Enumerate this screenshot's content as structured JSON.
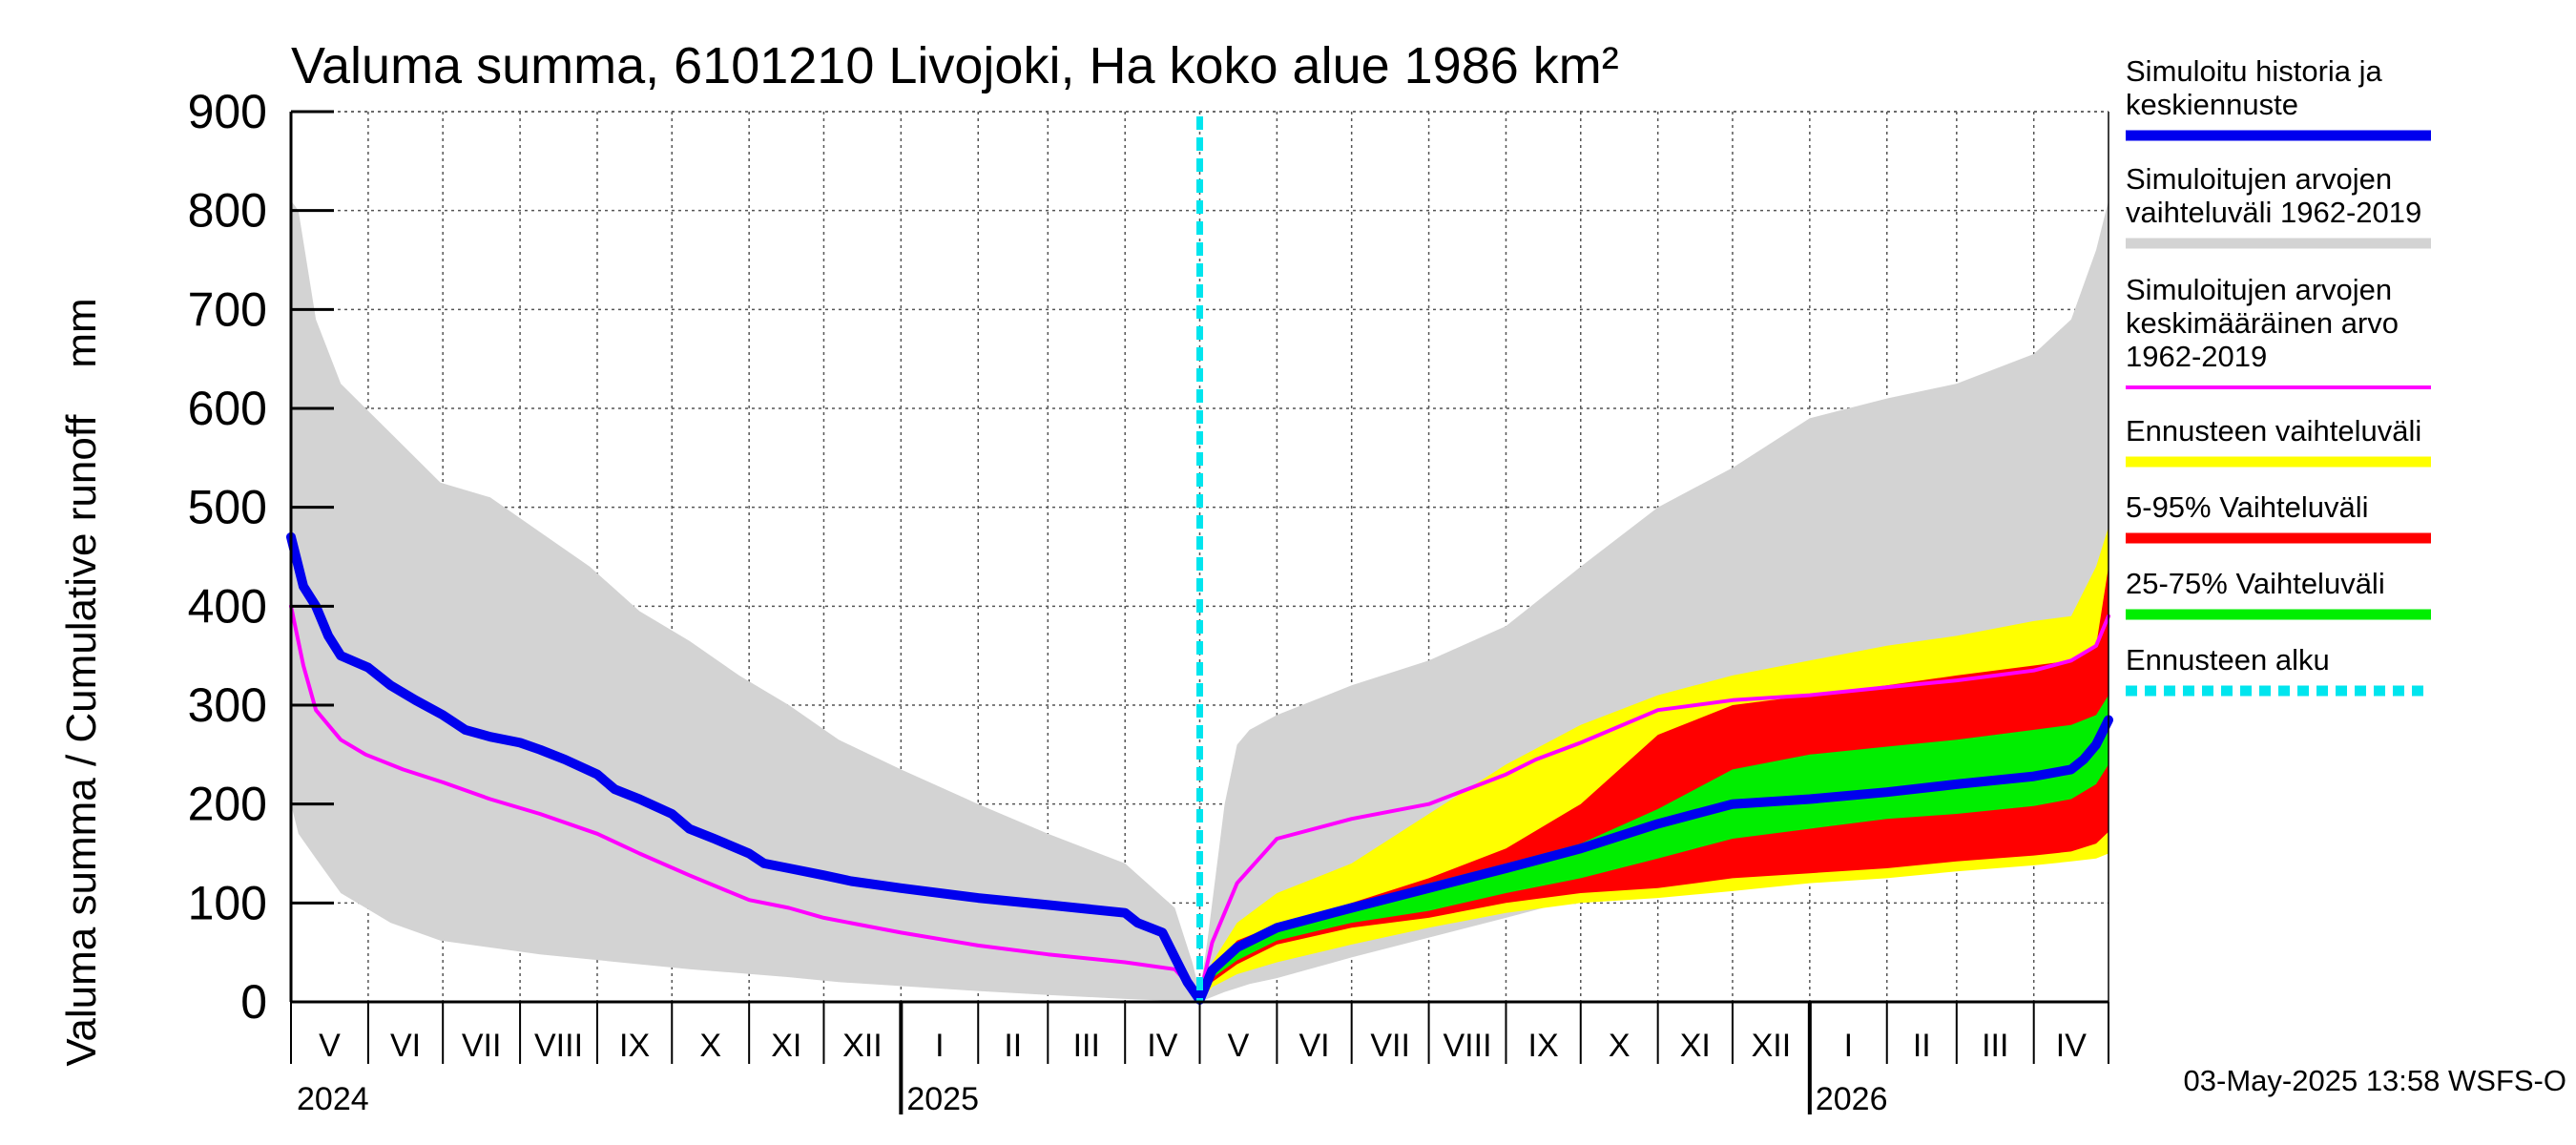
{
  "chart_data": {
    "type": "area",
    "title": "Valuma summa, 6101210 Livojoki, Ha koko alue 1986 km²",
    "ylabel": "Valuma summa / Cumulative runoff    mm",
    "ylim": [
      0,
      900
    ],
    "yticks": [
      "0",
      "100",
      "200",
      "300",
      "400",
      "500",
      "600",
      "700",
      "800",
      "900"
    ],
    "x_range_days": [
      0,
      730
    ],
    "forecast_start_day": 365,
    "months": [
      {
        "label": "V",
        "start": 0,
        "end": 31
      },
      {
        "label": "VI",
        "start": 31,
        "end": 61
      },
      {
        "label": "VII",
        "start": 61,
        "end": 92
      },
      {
        "label": "VIII",
        "start": 92,
        "end": 123
      },
      {
        "label": "IX",
        "start": 123,
        "end": 153
      },
      {
        "label": "X",
        "start": 153,
        "end": 184
      },
      {
        "label": "XI",
        "start": 184,
        "end": 214
      },
      {
        "label": "XII",
        "start": 214,
        "end": 245
      },
      {
        "label": "I",
        "start": 245,
        "end": 276
      },
      {
        "label": "II",
        "start": 276,
        "end": 304
      },
      {
        "label": "III",
        "start": 304,
        "end": 335
      },
      {
        "label": "IV",
        "start": 335,
        "end": 365
      },
      {
        "label": "V",
        "start": 365,
        "end": 396
      },
      {
        "label": "VI",
        "start": 396,
        "end": 426
      },
      {
        "label": "VII",
        "start": 426,
        "end": 457
      },
      {
        "label": "VIII",
        "start": 457,
        "end": 488
      },
      {
        "label": "IX",
        "start": 488,
        "end": 518
      },
      {
        "label": "X",
        "start": 518,
        "end": 549
      },
      {
        "label": "XI",
        "start": 549,
        "end": 579
      },
      {
        "label": "XII",
        "start": 579,
        "end": 610
      },
      {
        "label": "I",
        "start": 610,
        "end": 641
      },
      {
        "label": "II",
        "start": 641,
        "end": 669
      },
      {
        "label": "III",
        "start": 669,
        "end": 700
      },
      {
        "label": "IV",
        "start": 700,
        "end": 730
      }
    ],
    "years": [
      {
        "label": "2024",
        "day": 0
      },
      {
        "label": "2025",
        "day": 245
      },
      {
        "label": "2026",
        "day": 610
      }
    ],
    "series": [
      {
        "name": "Simuloitujen arvojen vaihteluväli 1962-2019",
        "kind": "band",
        "color": "#d3d3d3",
        "x": [
          0,
          3,
          10,
          20,
          40,
          60,
          80,
          100,
          120,
          140,
          160,
          180,
          200,
          220,
          245,
          276,
          304,
          335,
          355,
          362,
          365,
          368,
          375,
          380,
          385,
          396,
          426,
          457,
          488,
          518,
          549,
          579,
          610,
          641,
          669,
          700,
          715,
          725,
          730
        ],
        "upper": [
          810,
          800,
          690,
          625,
          575,
          525,
          510,
          475,
          440,
          395,
          365,
          330,
          300,
          265,
          235,
          200,
          170,
          140,
          95,
          40,
          10,
          60,
          200,
          260,
          275,
          290,
          320,
          345,
          380,
          440,
          500,
          540,
          590,
          610,
          625,
          655,
          690,
          760,
          810
        ],
        "lower": [
          200,
          170,
          145,
          110,
          80,
          62,
          55,
          48,
          43,
          38,
          33,
          29,
          25,
          20,
          16,
          11,
          7,
          3,
          1,
          0,
          0,
          3,
          10,
          14,
          18,
          24,
          45,
          65,
          85,
          105,
          115,
          120,
          125,
          130,
          135,
          140,
          145,
          150,
          155
        ]
      },
      {
        "name": "Ennusteen vaihteluväli",
        "kind": "band",
        "color": "#ffff00",
        "x": [
          365,
          370,
          380,
          396,
          426,
          457,
          488,
          518,
          549,
          579,
          610,
          641,
          669,
          700,
          715,
          725,
          730
        ],
        "upper": [
          5,
          40,
          80,
          110,
          140,
          190,
          240,
          280,
          310,
          330,
          345,
          360,
          370,
          385,
          390,
          440,
          480
        ],
        "lower": [
          0,
          15,
          28,
          40,
          58,
          75,
          90,
          100,
          105,
          112,
          120,
          125,
          132,
          138,
          142,
          145,
          150
        ]
      },
      {
        "name": "5-95% Vaihteluväli",
        "kind": "band",
        "color": "#ff0000",
        "x": [
          365,
          370,
          380,
          396,
          426,
          457,
          488,
          518,
          549,
          579,
          610,
          641,
          669,
          700,
          715,
          725,
          730
        ],
        "upper": [
          5,
          35,
          62,
          78,
          100,
          125,
          155,
          200,
          270,
          300,
          310,
          320,
          330,
          340,
          345,
          360,
          440
        ],
        "lower": [
          0,
          20,
          38,
          58,
          75,
          85,
          100,
          110,
          115,
          125,
          130,
          135,
          142,
          148,
          152,
          160,
          172
        ]
      },
      {
        "name": "25-75% Vaihteluväli",
        "kind": "band",
        "color": "#00ee00",
        "x": [
          365,
          370,
          380,
          396,
          426,
          457,
          488,
          518,
          549,
          579,
          610,
          641,
          669,
          700,
          715,
          725,
          730
        ],
        "upper": [
          4,
          32,
          55,
          72,
          95,
          120,
          140,
          160,
          195,
          235,
          250,
          258,
          265,
          275,
          280,
          290,
          310
        ],
        "lower": [
          0,
          24,
          42,
          62,
          80,
          92,
          110,
          125,
          145,
          165,
          175,
          185,
          190,
          198,
          205,
          220,
          240
        ]
      },
      {
        "name": "Simuloitujen arvojen keskimääräinen arvo 1962-2019",
        "kind": "line",
        "color": "#ff00ff",
        "width": 4,
        "x": [
          0,
          5,
          10,
          20,
          30,
          45,
          61,
          80,
          100,
          123,
          140,
          160,
          184,
          200,
          214,
          245,
          276,
          304,
          335,
          355,
          365,
          370,
          380,
          396,
          426,
          457,
          488,
          500,
          518,
          549,
          579,
          610,
          641,
          669,
          700,
          715,
          725,
          730
        ],
        "y": [
          400,
          340,
          295,
          265,
          250,
          235,
          222,
          205,
          190,
          170,
          150,
          128,
          103,
          95,
          85,
          70,
          57,
          48,
          40,
          33,
          5,
          60,
          120,
          165,
          185,
          200,
          230,
          245,
          262,
          295,
          305,
          310,
          318,
          325,
          335,
          345,
          360,
          390
        ]
      },
      {
        "name": "Simuloitu historia ja keskiennuste",
        "kind": "line",
        "color": "#0000ee",
        "width": 10,
        "x": [
          0,
          2,
          5,
          10,
          15,
          20,
          31,
          40,
          50,
          61,
          70,
          80,
          92,
          100,
          110,
          123,
          130,
          140,
          153,
          160,
          170,
          184,
          190,
          200,
          214,
          225,
          245,
          276,
          304,
          335,
          340,
          350,
          355,
          360,
          365,
          370,
          380,
          396,
          426,
          457,
          488,
          518,
          549,
          579,
          610,
          641,
          669,
          700,
          715,
          720,
          725,
          730
        ],
        "y": [
          470,
          450,
          420,
          400,
          370,
          350,
          338,
          320,
          305,
          290,
          275,
          268,
          262,
          255,
          245,
          230,
          215,
          205,
          190,
          175,
          165,
          150,
          140,
          135,
          128,
          122,
          115,
          105,
          98,
          90,
          80,
          70,
          45,
          20,
          2,
          32,
          55,
          75,
          95,
          115,
          135,
          155,
          180,
          200,
          205,
          212,
          220,
          228,
          235,
          245,
          260,
          285
        ]
      }
    ],
    "forecast_line": {
      "name": "Ennusteen alku",
      "color": "#00e5ee"
    },
    "legend": {
      "placement": "right",
      "items": [
        {
          "label_lines": [
            "Simuloitu historia ja",
            "keskiennuste"
          ],
          "color": "#0000ee"
        },
        {
          "label_lines": [
            "Simuloitujen arvojen",
            "vaihteluväli 1962-2019"
          ],
          "color": "#d3d3d3"
        },
        {
          "label_lines": [
            "Simuloitujen arvojen",
            "keskimääräinen arvo",
            "   1962-2019"
          ],
          "color": "#ff00ff"
        },
        {
          "label_lines": [
            "Ennusteen vaihteluväli"
          ],
          "color": "#ffff00"
        },
        {
          "label_lines": [
            "5-95% Vaihteluväli"
          ],
          "color": "#ff0000"
        },
        {
          "label_lines": [
            "25-75% Vaihteluväli"
          ],
          "color": "#00ee00"
        },
        {
          "label_lines": [
            "Ennusteen alku"
          ],
          "color": "#00e5ee"
        }
      ]
    },
    "footer": "03-May-2025 13:58 WSFS-O"
  }
}
